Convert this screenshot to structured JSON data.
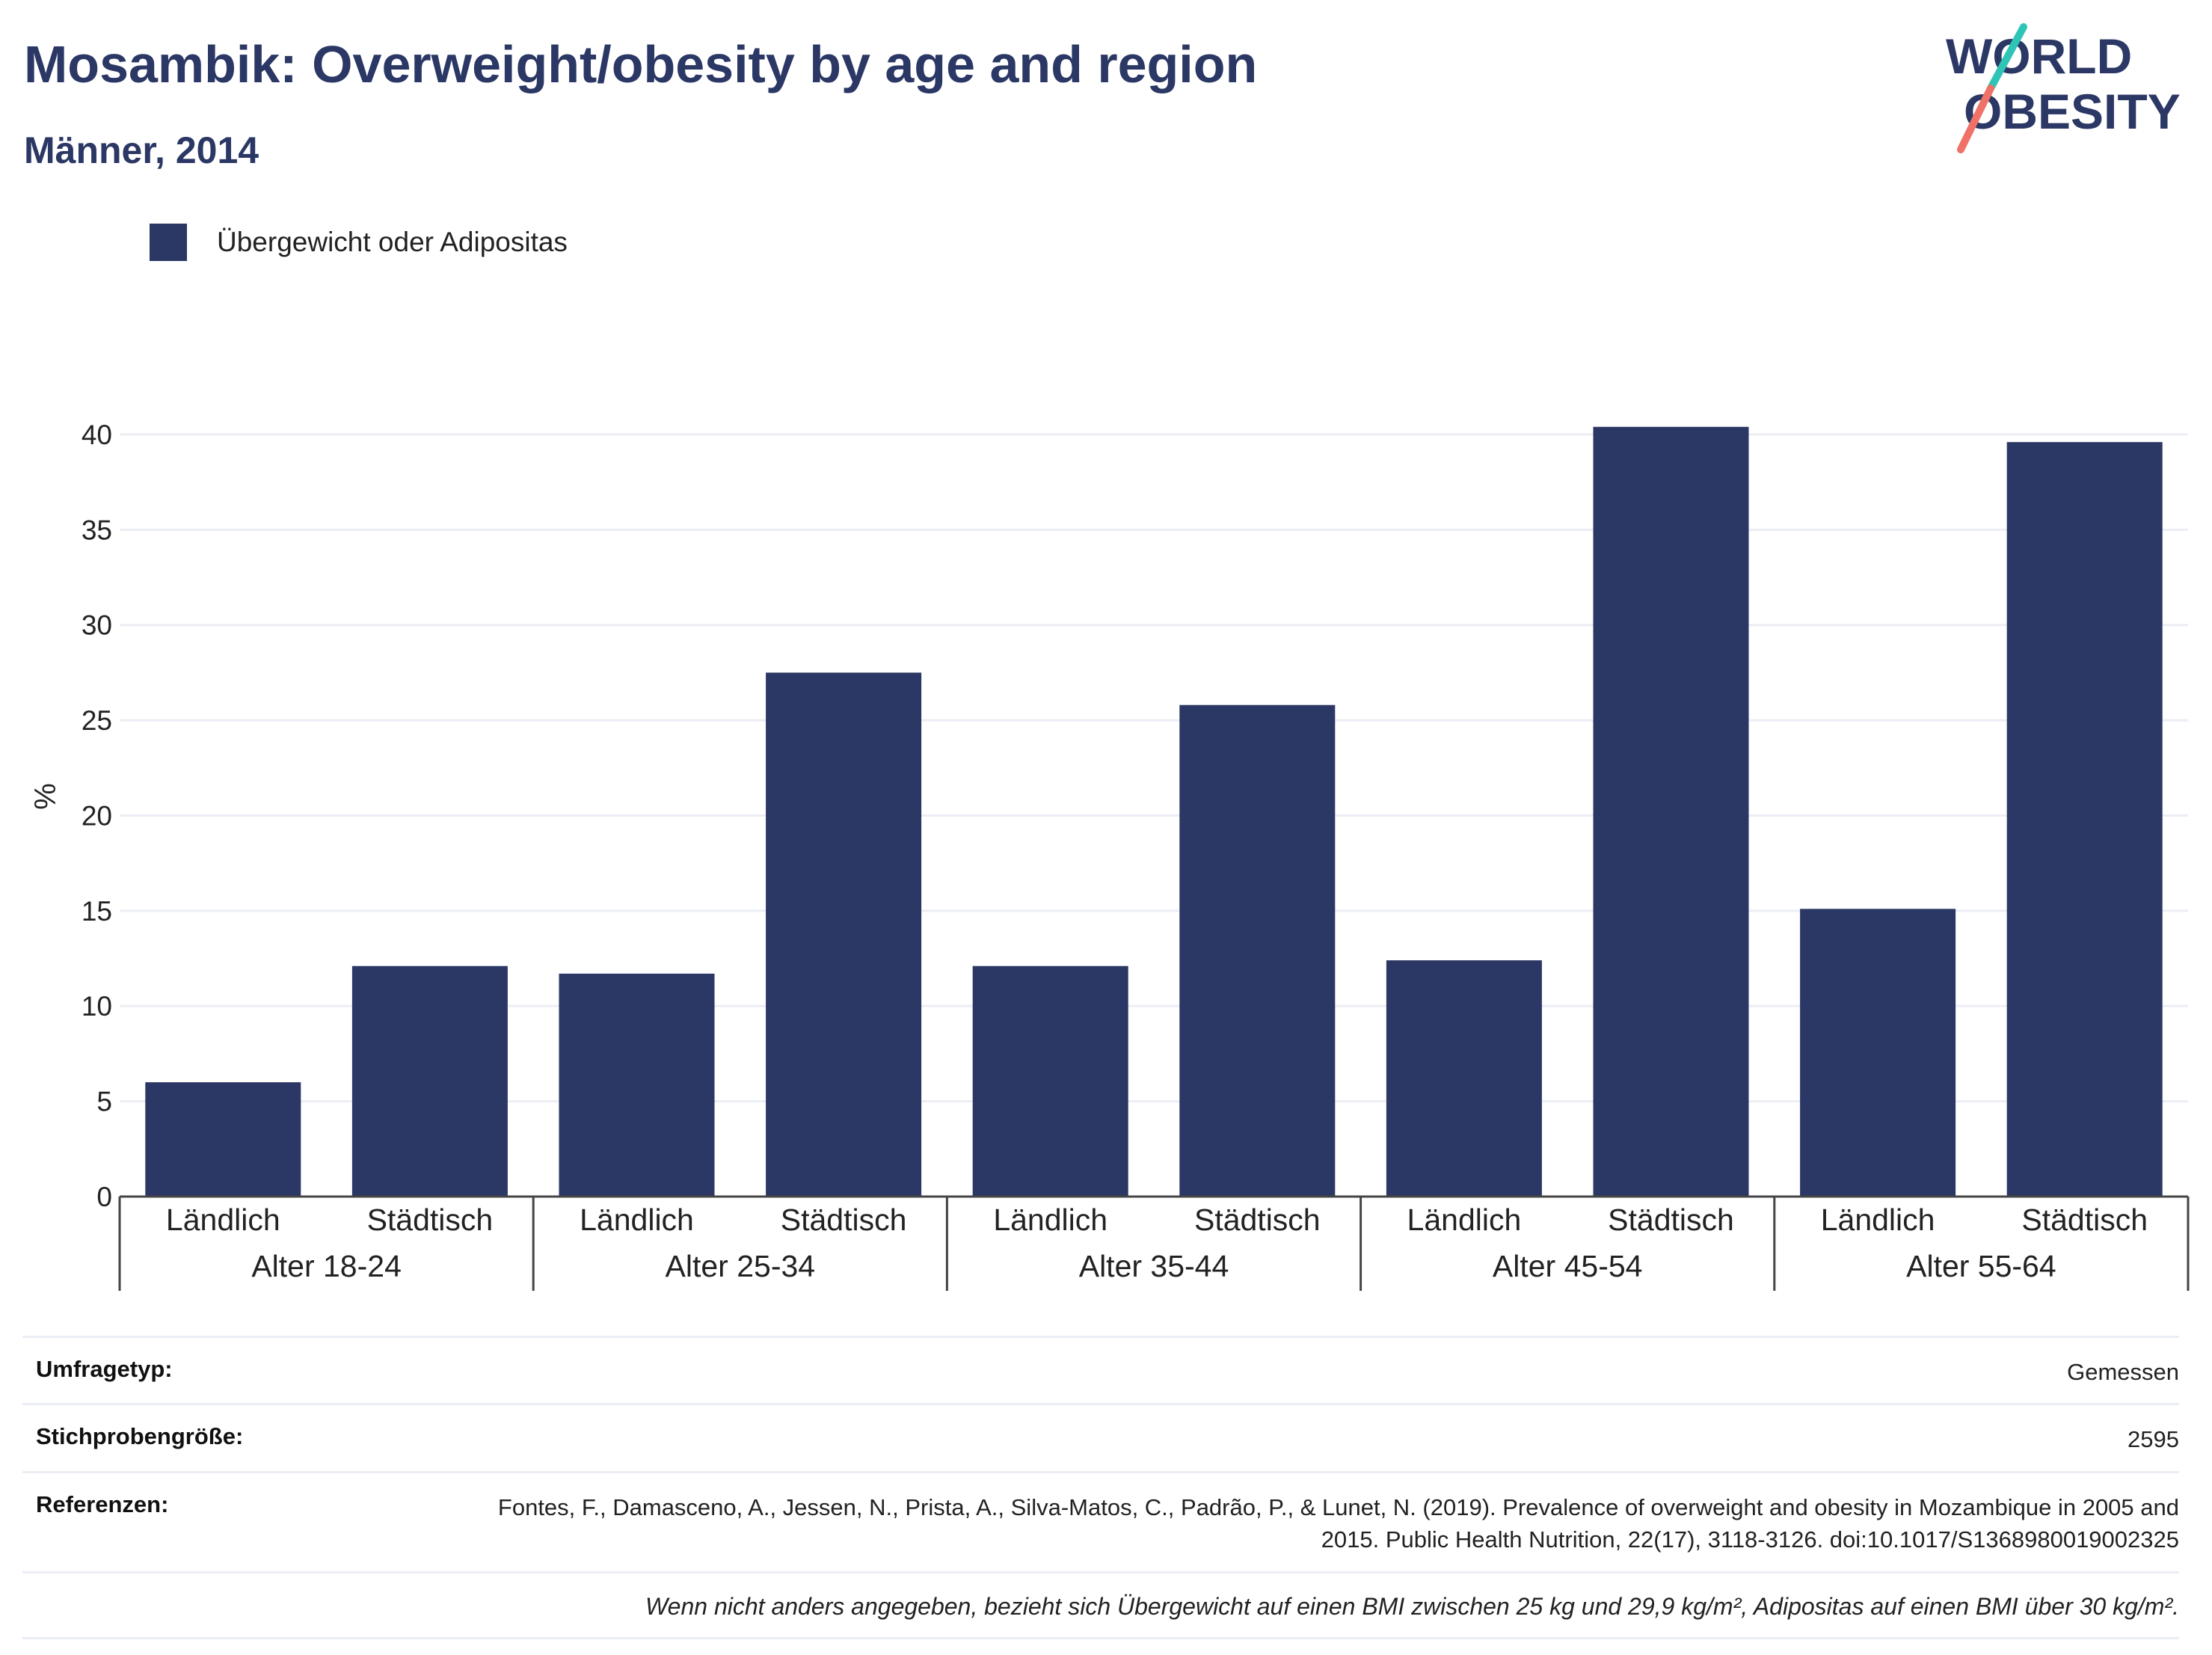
{
  "header": {
    "title": "Mosambik: Overweight/obesity by age and region",
    "subtitle": "Männer, 2014"
  },
  "logo": {
    "text_line1": "WORLD",
    "text_line2": "OBESITY",
    "colors": {
      "text": "#2b3764",
      "slash_top": "#2ec4b6",
      "slash_bottom": "#f07167"
    }
  },
  "legend": {
    "label": "Übergewicht oder Adipositas",
    "color": "#2b3764"
  },
  "chart_data": {
    "type": "bar",
    "ylabel": "%",
    "ylim": [
      0,
      42
    ],
    "yticks": [
      0,
      5,
      10,
      15,
      20,
      25,
      30,
      35,
      40
    ],
    "grid": true,
    "legend_position": "top-left",
    "bar_color": "#2b3764",
    "groups": [
      {
        "label": "Alter 18-24",
        "categories": [
          "Ländlich",
          "Städtisch"
        ],
        "values": [
          6.0,
          12.1
        ]
      },
      {
        "label": "Alter 25-34",
        "categories": [
          "Ländlich",
          "Städtisch"
        ],
        "values": [
          11.7,
          27.5
        ]
      },
      {
        "label": "Alter 35-44",
        "categories": [
          "Ländlich",
          "Städtisch"
        ],
        "values": [
          12.1,
          25.8
        ]
      },
      {
        "label": "Alter 45-54",
        "categories": [
          "Ländlich",
          "Städtisch"
        ],
        "values": [
          12.4,
          40.4
        ]
      },
      {
        "label": "Alter 55-64",
        "categories": [
          "Ländlich",
          "Städtisch"
        ],
        "values": [
          15.1,
          39.6
        ]
      }
    ],
    "series": [
      {
        "name": "Übergewicht oder Adipositas",
        "values": [
          6.0,
          12.1,
          11.7,
          27.5,
          12.1,
          25.8,
          12.4,
          40.4,
          15.1,
          39.6
        ]
      }
    ]
  },
  "info": {
    "survey_type": {
      "label": "Umfragetyp:",
      "value": "Gemessen"
    },
    "sample_size": {
      "label": "Stichprobengröße:",
      "value": "2595"
    },
    "references": {
      "label": "Referenzen:",
      "value": "Fontes, F., Damasceno, A., Jessen, N., Prista, A., Silva-Matos, C., Padrão, P., & Lunet, N. (2019). Prevalence of overweight and obesity in Mozambique in 2005 and 2015. Public Health Nutrition, 22(17), 3118-3126. doi:10.1017/S1368980019002325"
    },
    "note": "Wenn nicht anders angegeben, bezieht sich Übergewicht auf einen BMI zwischen 25 kg und 29,9 kg/m², Adipositas auf einen BMI über 30 kg/m²."
  }
}
